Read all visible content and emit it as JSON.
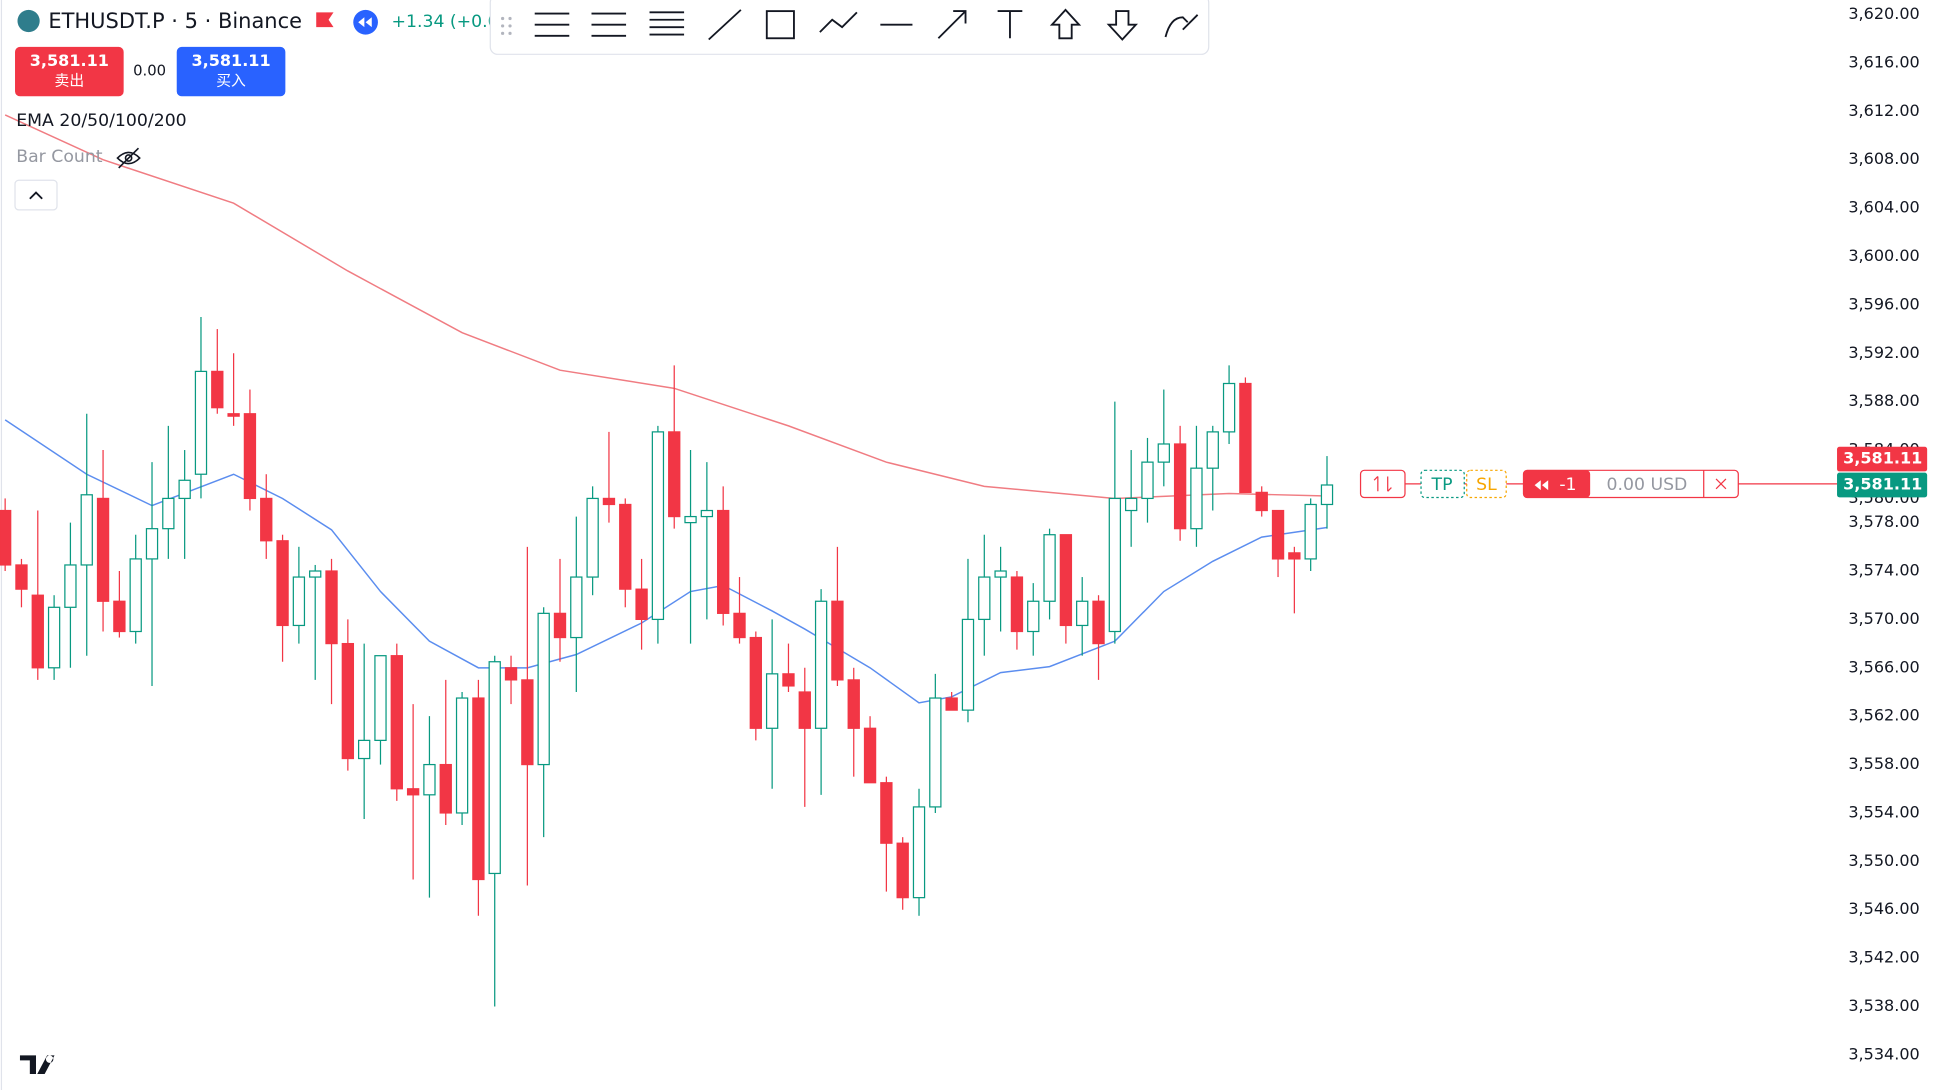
{
  "header": {
    "symbol": "ETHUSDT.P · 5 · Binance",
    "change": "+1.34 (+0.0"
  },
  "trade_buttons": {
    "sell_price": "3,581.11",
    "sell_label": "卖出",
    "spread": "0.00",
    "buy_price": "3,581.11",
    "buy_label": "买入"
  },
  "indicators": [
    "EMA 20/50/100/200",
    "Bar Count"
  ],
  "order_line": {
    "tp": "TP",
    "sl": "SL",
    "quantity": "-1",
    "pnl": "0.00 USD"
  },
  "chart_data": {
    "type": "candlestick",
    "open": [
      3579,
      3574.5,
      3572,
      3566,
      3571,
      3574.5,
      3580,
      3571.5,
      3569,
      3575,
      3577.5,
      3580,
      3582,
      3590.5,
      3587,
      3587,
      3580,
      3576.5,
      3569.5,
      3573.5,
      3574,
      3568,
      3558.5,
      3560,
      3567,
      3556,
      3555.5,
      3558,
      3554,
      3563.5,
      3549,
      3566,
      3565,
      3558,
      3570.5,
      3568.5,
      3573.5,
      3580,
      3579.5,
      3572.5,
      3570,
      3585.5,
      3578,
      3578.5,
      3579,
      3570.5,
      3568.5,
      3561,
      3565.5,
      3564,
      3561,
      3571.5,
      3565,
      3561,
      3556.5,
      3551.5,
      3547,
      3554.5,
      3563.5,
      3562.5,
      3570,
      3573.5,
      3573.5,
      3569,
      3571.5,
      3577,
      3569.5,
      3571.5,
      3569,
      3579,
      3580,
      3583,
      3584.5,
      3577.5,
      3582.5,
      3585.5,
      3589.5,
      3580.5,
      3579,
      3575.5,
      3575,
      3579.5
    ],
    "high": [
      3580,
      3575,
      3579,
      3572,
      3578,
      3587,
      3584,
      3574,
      3577,
      3583,
      3586,
      3584,
      3595,
      3594,
      3592,
      3589,
      3582,
      3577,
      3576,
      3574.5,
      3575,
      3570,
      3568,
      3567,
      3568,
      3563,
      3562,
      3565,
      3564,
      3565,
      3567,
      3567,
      3576,
      3571,
      3575,
      3578.5,
      3581,
      3585.5,
      3580,
      3575,
      3586,
      3591,
      3584,
      3583,
      3581,
      3573.5,
      3569,
      3570,
      3568,
      3566,
      3572.5,
      3576,
      3566,
      3562,
      3557,
      3552,
      3556,
      3565.5,
      3564,
      3575,
      3577,
      3576,
      3574,
      3573,
      3577.5,
      3577,
      3573.5,
      3572,
      3588,
      3584,
      3585,
      3589,
      3586,
      3586,
      3586,
      3591,
      3590,
      3581,
      3579,
      3576,
      3580,
      3583.5
    ],
    "low": [
      3574,
      3571,
      3565,
      3565,
      3566,
      3567,
      3569,
      3568.5,
      3568,
      3564.5,
      3575,
      3575,
      3580,
      3587,
      3586,
      3579,
      3575,
      3566.5,
      3568,
      3565,
      3563,
      3557.5,
      3553.5,
      3558,
      3555,
      3548.5,
      3547,
      3553,
      3553,
      3545.5,
      3538,
      3563,
      3548,
      3552,
      3566.5,
      3564,
      3572,
      3578,
      3571,
      3567.5,
      3568,
      3577.5,
      3568,
      3570,
      3569.5,
      3568,
      3560,
      3556,
      3564,
      3554.5,
      3555.5,
      3564.5,
      3557,
      3556.5,
      3547.5,
      3546,
      3545.5,
      3554,
      3562.5,
      3561.5,
      3567,
      3569,
      3567.5,
      3567,
      3570,
      3568,
      3567,
      3565,
      3568,
      3576,
      3578,
      3581,
      3576.5,
      3576,
      3579,
      3584.5,
      3580.5,
      3578.5,
      3573.5,
      3570.5,
      3574,
      3577.5
    ],
    "close": [
      3574.5,
      3572.5,
      3566,
      3571,
      3574.5,
      3580.3,
      3571.5,
      3569,
      3575,
      3577.5,
      3580,
      3581.5,
      3590.5,
      3587.5,
      3586.8,
      3580,
      3576.5,
      3569.5,
      3573.5,
      3574,
      3568,
      3558.5,
      3560,
      3567,
      3556,
      3555.5,
      3558,
      3554,
      3563.5,
      3548.5,
      3566.5,
      3565,
      3558,
      3570.5,
      3568.5,
      3573.5,
      3580,
      3579.5,
      3572.5,
      3570,
      3585.5,
      3578.5,
      3578.5,
      3579,
      3570.5,
      3568.5,
      3561,
      3565.5,
      3564.5,
      3561,
      3571.5,
      3565,
      3561,
      3556.5,
      3551.5,
      3547,
      3554.5,
      3563.5,
      3562.5,
      3570,
      3573.5,
      3574,
      3569,
      3571.5,
      3577,
      3569.5,
      3571.5,
      3568,
      3580,
      3580,
      3583,
      3584.5,
      3577.5,
      3582.5,
      3585.5,
      3589.5,
      3580.5,
      3579,
      3575,
      3575,
      3579.5,
      3581.11
    ],
    "up_color": "#089981",
    "down_color": "#f23645",
    "overlays": [
      {
        "color": "#5b8def",
        "x": [
          0,
          5,
          9,
          14,
          17,
          20,
          23,
          26,
          29,
          32,
          35,
          39,
          42,
          44,
          47,
          49,
          53,
          56,
          58,
          61,
          64,
          68,
          71,
          74,
          77,
          81
        ],
        "values": [
          3586.5,
          3582,
          3579.4,
          3582,
          3580,
          3577.4,
          3572.3,
          3568.2,
          3566,
          3566,
          3567.1,
          3569.7,
          3572.3,
          3572.8,
          3570.7,
          3569.2,
          3566,
          3563.1,
          3563.6,
          3565.6,
          3566.1,
          3568.2,
          3572.3,
          3574.8,
          3576.8,
          3577.6
        ]
      },
      {
        "color": "#f07c82",
        "x": [
          0,
          6,
          14,
          21,
          28,
          34,
          41,
          48,
          54,
          60,
          68,
          75,
          81
        ],
        "values": [
          3611.7,
          3608,
          3604.4,
          3598.8,
          3593.7,
          3590.6,
          3589.1,
          3586,
          3583,
          3581,
          3580,
          3580.4,
          3580.2
        ]
      }
    ],
    "ylim": [
      3531.1,
      3621.2
    ],
    "yticks": [
      {
        "value": 3620,
        "label": "3,620.00"
      },
      {
        "value": 3616,
        "label": "3,616.00"
      },
      {
        "value": 3612,
        "label": "3,612.00"
      },
      {
        "value": 3608,
        "label": "3,608.00"
      },
      {
        "value": 3604,
        "label": "3,604.00"
      },
      {
        "value": 3600,
        "label": "3,600.00"
      },
      {
        "value": 3596,
        "label": "3,596.00"
      },
      {
        "value": 3592,
        "label": "3,592.00"
      },
      {
        "value": 3588,
        "label": "3,588.00"
      },
      {
        "value": 3584,
        "label": "3,584.00"
      },
      {
        "value": 3580,
        "label": "3,580.00"
      },
      {
        "value": 3578,
        "label": "3,578.00"
      },
      {
        "value": 3574,
        "label": "3,574.00"
      },
      {
        "value": 3570,
        "label": "3,570.00"
      },
      {
        "value": 3566,
        "label": "3,566.00"
      },
      {
        "value": 3562,
        "label": "3,562.00"
      },
      {
        "value": 3558,
        "label": "3,558.00"
      },
      {
        "value": 3554,
        "label": "3,554.00"
      },
      {
        "value": 3550,
        "label": "3,550.00"
      },
      {
        "value": 3546,
        "label": "3,546.00"
      },
      {
        "value": 3542,
        "label": "3,542.00"
      },
      {
        "value": 3538,
        "label": "3,538.00"
      },
      {
        "value": 3534,
        "label": "3,534.00"
      }
    ],
    "price_tags": [
      {
        "value": 3581.11,
        "label": "3,581.11",
        "color": "#f23645"
      },
      {
        "value": 3581.11,
        "label": "3,581.11",
        "color": "#089981"
      }
    ]
  }
}
